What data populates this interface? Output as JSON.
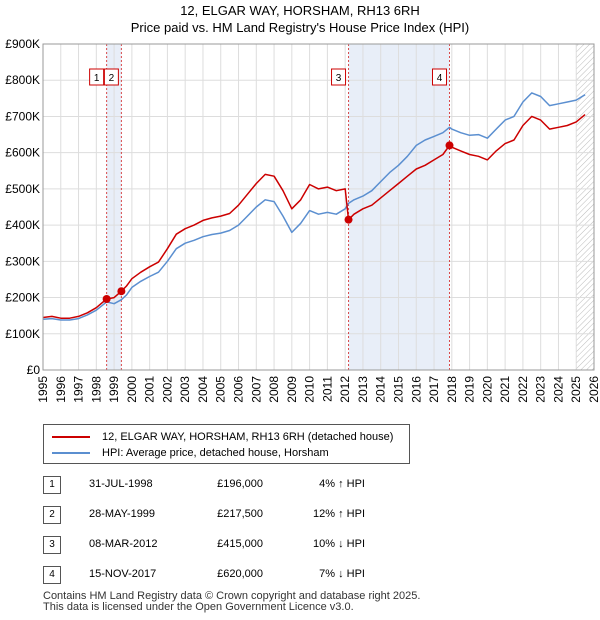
{
  "chart_data": {
    "type": "line",
    "title": "12, ELGAR WAY, HORSHAM, RH13 6RH",
    "subtitle": "Price paid vs. HM Land Registry's House Price Index (HPI)",
    "xlabel": "",
    "ylabel": "",
    "xlim": [
      1995,
      2026
    ],
    "ylim": [
      0,
      900000
    ],
    "x_ticks": [
      1995,
      1996,
      1997,
      1998,
      1999,
      2000,
      2001,
      2002,
      2003,
      2004,
      2005,
      2006,
      2007,
      2008,
      2009,
      2010,
      2011,
      2012,
      2013,
      2014,
      2015,
      2016,
      2017,
      2018,
      2019,
      2020,
      2021,
      2022,
      2023,
      2024,
      2025,
      2026
    ],
    "x_tick_labels": [
      "1995",
      "1996",
      "1997",
      "1998",
      "1999",
      "2000",
      "2001",
      "2002",
      "2003",
      "2004",
      "2005",
      "2006",
      "2007",
      "2008",
      "2009",
      "2010",
      "2011",
      "2012",
      "2013",
      "2014",
      "2015",
      "2016",
      "2017",
      "2018",
      "2019",
      "2020",
      "2021",
      "2022",
      "2023",
      "2024",
      "2025",
      "2026"
    ],
    "y_ticks": [
      0,
      100000,
      200000,
      300000,
      400000,
      500000,
      600000,
      700000,
      800000,
      900000
    ],
    "y_tick_labels": [
      "£0",
      "£100K",
      "£200K",
      "£300K",
      "£400K",
      "£500K",
      "£600K",
      "£700K",
      "£800K",
      "£900K"
    ],
    "grid": true,
    "colors": {
      "property": "#cc0000",
      "hpi": "#5b8fd0",
      "shade": "#e8eef8",
      "marker_line": "#cc0000"
    },
    "series": [
      {
        "name": "12, ELGAR WAY, HORSHAM, RH13 6RH (detached house)",
        "x": [
          1995.0,
          1995.5,
          1996.0,
          1996.5,
          1997.0,
          1997.5,
          1998.0,
          1998.58,
          1999.0,
          1999.41,
          1999.7,
          2000.0,
          2000.5,
          2001.0,
          2001.5,
          2002.0,
          2002.5,
          2003.0,
          2003.5,
          2004.0,
          2004.5,
          2005.0,
          2005.5,
          2006.0,
          2006.5,
          2007.0,
          2007.5,
          2008.0,
          2008.5,
          2009.0,
          2009.5,
          2010.0,
          2010.5,
          2011.0,
          2011.5,
          2012.0,
          2012.19,
          2012.5,
          2013.0,
          2013.5,
          2014.0,
          2014.5,
          2015.0,
          2015.5,
          2016.0,
          2016.5,
          2017.0,
          2017.5,
          2017.87,
          2018.0,
          2018.5,
          2019.0,
          2019.5,
          2020.0,
          2020.5,
          2021.0,
          2021.5,
          2022.0,
          2022.5,
          2023.0,
          2023.5,
          2024.0,
          2024.5,
          2025.0,
          2025.5
        ],
        "values": [
          145000,
          148000,
          143000,
          143000,
          148000,
          158000,
          172000,
          196000,
          200000,
          217500,
          232000,
          252000,
          270000,
          285000,
          298000,
          335000,
          375000,
          390000,
          400000,
          413000,
          420000,
          425000,
          432000,
          455000,
          485000,
          515000,
          540000,
          535000,
          495000,
          445000,
          470000,
          512000,
          500000,
          505000,
          495000,
          500000,
          415000,
          430000,
          445000,
          455000,
          475000,
          495000,
          515000,
          535000,
          555000,
          565000,
          580000,
          595000,
          620000,
          615000,
          605000,
          595000,
          590000,
          580000,
          605000,
          625000,
          635000,
          675000,
          700000,
          690000,
          665000,
          670000,
          675000,
          685000,
          705000
        ]
      },
      {
        "name": "HPI: Average price, detached house, Horsham",
        "x": [
          1995.0,
          1995.5,
          1996.0,
          1996.5,
          1997.0,
          1997.5,
          1998.0,
          1998.58,
          1999.0,
          1999.41,
          1999.7,
          2000.0,
          2000.5,
          2001.0,
          2001.5,
          2002.0,
          2002.5,
          2003.0,
          2003.5,
          2004.0,
          2004.5,
          2005.0,
          2005.5,
          2006.0,
          2006.5,
          2007.0,
          2007.5,
          2008.0,
          2008.5,
          2009.0,
          2009.5,
          2010.0,
          2010.5,
          2011.0,
          2011.5,
          2012.0,
          2012.19,
          2012.5,
          2013.0,
          2013.5,
          2014.0,
          2014.5,
          2015.0,
          2015.5,
          2016.0,
          2016.5,
          2017.0,
          2017.5,
          2017.87,
          2018.0,
          2018.5,
          2019.0,
          2019.5,
          2020.0,
          2020.5,
          2021.0,
          2021.5,
          2022.0,
          2022.5,
          2023.0,
          2023.5,
          2024.0,
          2024.5,
          2025.0,
          2025.5
        ],
        "values": [
          140000,
          142000,
          138000,
          138000,
          142000,
          152000,
          165000,
          188000,
          183000,
          194000,
          207000,
          228000,
          245000,
          258000,
          270000,
          300000,
          335000,
          350000,
          358000,
          368000,
          374000,
          378000,
          385000,
          400000,
          425000,
          450000,
          470000,
          465000,
          425000,
          380000,
          405000,
          440000,
          430000,
          435000,
          430000,
          445000,
          460000,
          470000,
          480000,
          495000,
          520000,
          545000,
          565000,
          590000,
          620000,
          635000,
          645000,
          655000,
          670000,
          665000,
          655000,
          648000,
          650000,
          640000,
          665000,
          690000,
          700000,
          740000,
          765000,
          755000,
          730000,
          735000,
          740000,
          745000,
          760000
        ]
      }
    ],
    "shaded_spans": [
      [
        1998.58,
        1999.41
      ],
      [
        2012.19,
        2017.87
      ]
    ],
    "shaded_after": 2025.0,
    "transactions": [
      {
        "num": "1",
        "x": 1998.58,
        "value": 196000
      },
      {
        "num": "2",
        "x": 1999.41,
        "value": 217500
      },
      {
        "num": "3",
        "x": 2012.19,
        "value": 415000
      },
      {
        "num": "4",
        "x": 2017.87,
        "value": 620000
      }
    ]
  },
  "legend": {
    "property_label": "12, ELGAR WAY, HORSHAM, RH13 6RH (detached house)",
    "hpi_label": "HPI: Average price, detached house, Horsham"
  },
  "table": [
    {
      "num": "1",
      "date": "31-JUL-1998",
      "price": "£196,000",
      "hpi": "4% ↑ HPI"
    },
    {
      "num": "2",
      "date": "28-MAY-1999",
      "price": "£217,500",
      "hpi": "12% ↑ HPI"
    },
    {
      "num": "3",
      "date": "08-MAR-2012",
      "price": "£415,000",
      "hpi": "10% ↓ HPI"
    },
    {
      "num": "4",
      "date": "15-NOV-2017",
      "price": "£620,000",
      "hpi": "7% ↓ HPI"
    }
  ],
  "footer": {
    "line1": "Contains HM Land Registry data © Crown copyright and database right 2025.",
    "line2": "This data is licensed under the Open Government Licence v3.0."
  }
}
